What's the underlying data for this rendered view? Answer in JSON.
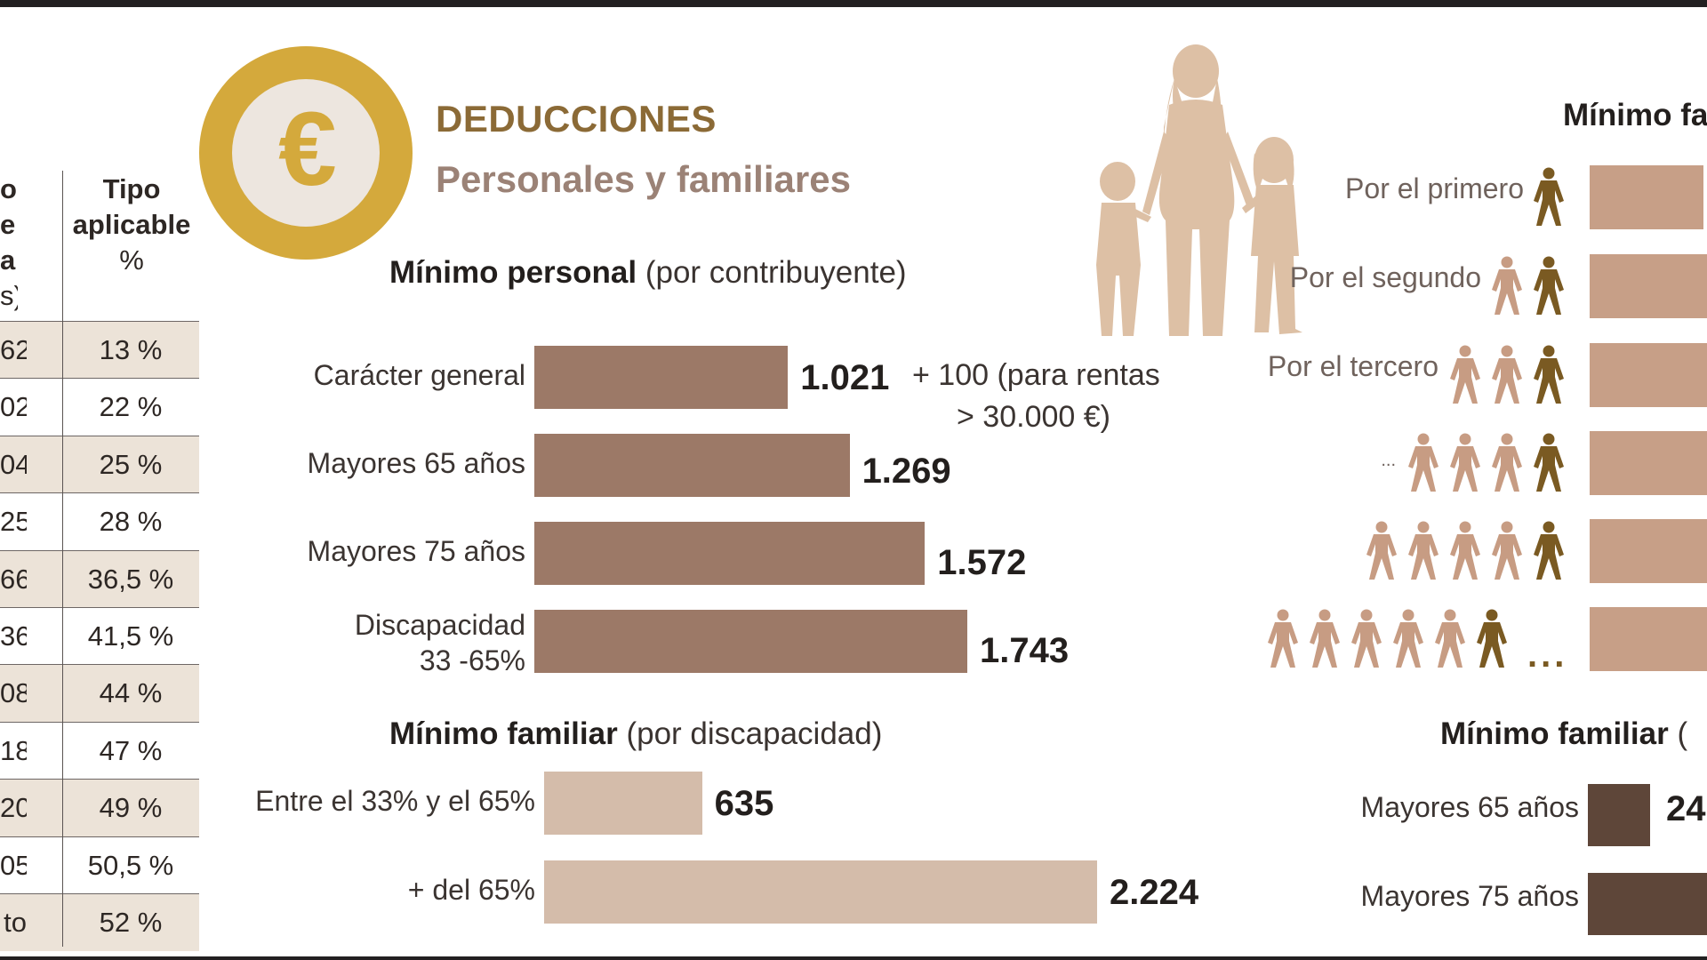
{
  "title": "DEDUCCIONES",
  "subtitle": "Personales y familiares",
  "rate_table": {
    "header_left": [
      "o",
      "e",
      "a",
      "s)"
    ],
    "header_right": [
      "Tipo",
      "aplicable",
      "%"
    ],
    "rows": [
      {
        "left": "62",
        "rate": "13 %"
      },
      {
        "left": "02",
        "rate": "22 %"
      },
      {
        "left": "04",
        "rate": "25 %"
      },
      {
        "left": "25",
        "rate": "28 %"
      },
      {
        "left": "66",
        "rate": "36,5 %"
      },
      {
        "left": "36",
        "rate": "41,5 %"
      },
      {
        "left": "08",
        "rate": "44 %"
      },
      {
        "left": "18",
        "rate": "47 %"
      },
      {
        "left": "20",
        "rate": "49 %"
      },
      {
        "left": "05",
        "rate": "50,5 %"
      },
      {
        "left": "to",
        "rate": "52 %"
      }
    ]
  },
  "personal": {
    "heading_bold": "Mínimo personal",
    "heading_rest": " (por contribuyente)",
    "note_line1": "+ 100 (para rentas",
    "note_line2": "> 30.000 €)"
  },
  "discapacidad": {
    "heading_bold": "Mínimo familiar",
    "heading_rest": " (por discapacidad)"
  },
  "hijos": {
    "heading_bold": "Mínimo fa",
    "labels": [
      "Por el primero",
      "Por el segundo",
      "Por el tercero",
      "...",
      "",
      ""
    ],
    "dots": "..."
  },
  "ascendientes": {
    "heading_bold": "Mínimo familiar",
    "heading_rest": " (",
    "labels": [
      "Mayores 65 años",
      "Mayores 75 años"
    ],
    "first_value": "24"
  },
  "colors": {
    "gold": "#d4a93c",
    "personal_bar": "#9c7967",
    "disability_bar": "#d4bcaa",
    "children_bar": "#c79f87",
    "elder_bar": "#5e4639",
    "figure_light": "#c79c83",
    "figure_dark": "#7a5a22"
  },
  "icons": [
    "euro-coin-icon",
    "family-silhouette-icon",
    "person-icon"
  ],
  "chart_data": [
    {
      "type": "bar",
      "orientation": "horizontal",
      "title": "Mínimo personal (por contribuyente)",
      "categories": [
        "Carácter general",
        "Mayores 65 años",
        "Mayores 75 años",
        "Discapacidad 33 -65%"
      ],
      "values": [
        1021,
        1269,
        1572,
        1743
      ],
      "value_labels": [
        "1.021",
        "1.269",
        "1.572",
        "1.743"
      ],
      "annotation": "+ 100 (para rentas > 30.000 €)",
      "xlim": [
        0,
        1743
      ]
    },
    {
      "type": "bar",
      "orientation": "horizontal",
      "title": "Mínimo familiar (por discapacidad)",
      "categories": [
        "Entre el 33% y el 65%",
        "+ del 65%"
      ],
      "values": [
        635,
        2224
      ],
      "value_labels": [
        "635",
        "2.224"
      ],
      "xlim": [
        0,
        2224
      ]
    }
  ]
}
